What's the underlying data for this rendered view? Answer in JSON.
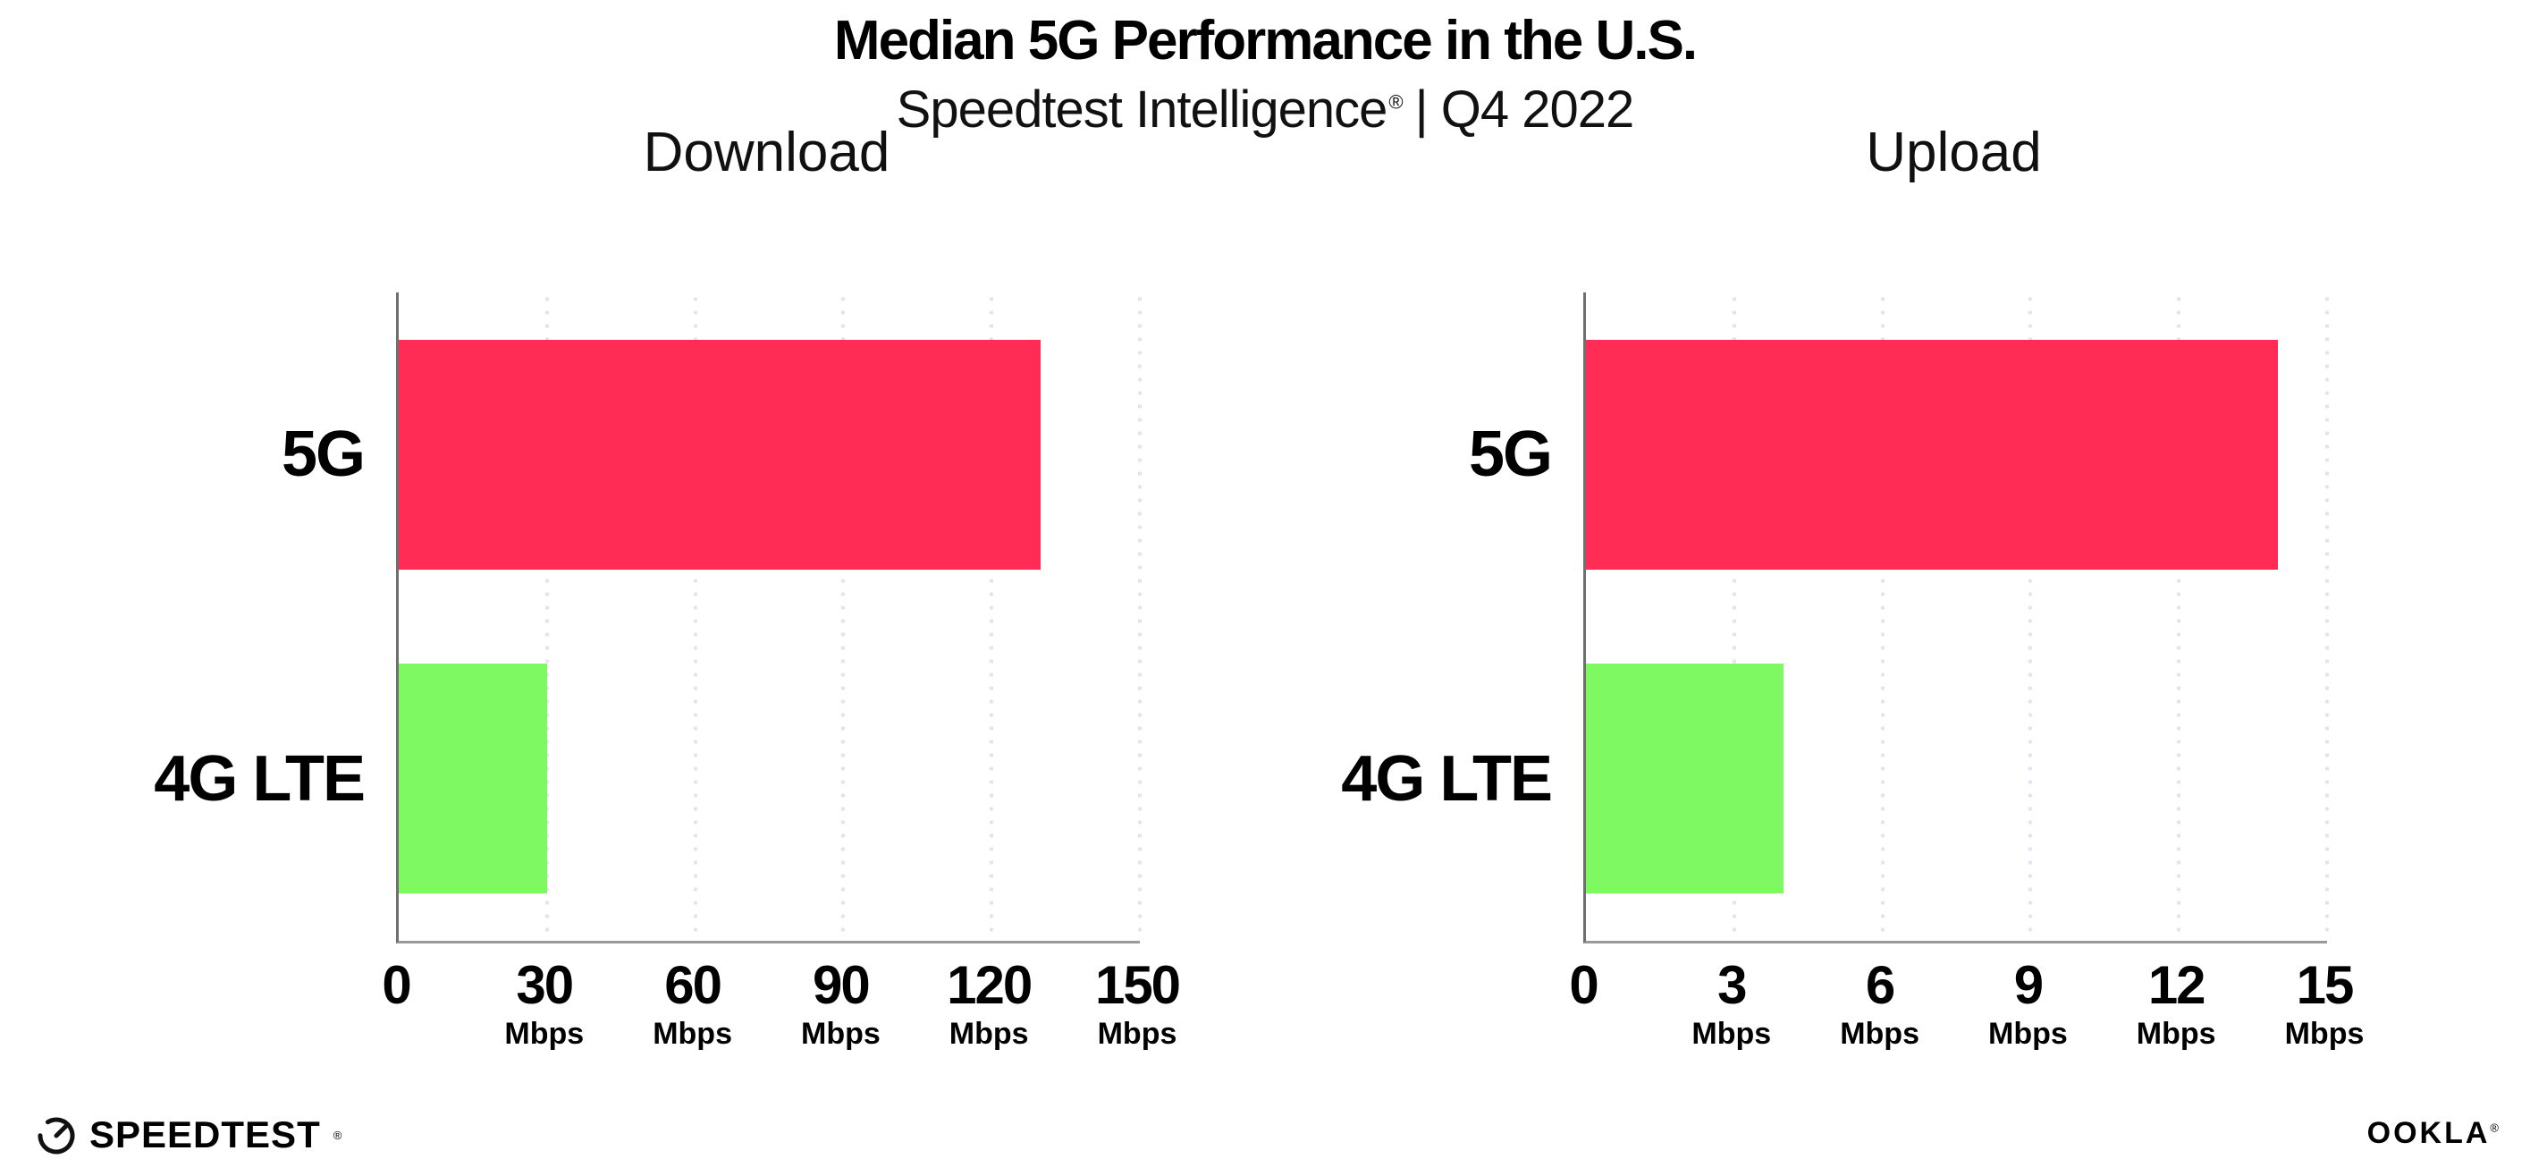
{
  "header": {
    "title": "Median 5G Performance in the U.S.",
    "subtitle_brand": "Speedtest Intelligence",
    "subtitle_reg": "®",
    "subtitle_rest": "| Q4 2022"
  },
  "colors": {
    "bar_5g": "#FF2D55",
    "bar_4g": "#7FF962",
    "grid": "#E4E4F0",
    "axis": "#999999",
    "spine": "#6F6F6F",
    "text": "#000000"
  },
  "chart_data": [
    {
      "type": "bar",
      "orientation": "horizontal",
      "title": "Download",
      "categories": [
        "5G",
        "4G LTE"
      ],
      "values": [
        130,
        30
      ],
      "unit": "Mbps",
      "xlim": [
        0,
        150
      ],
      "xticks": [
        0,
        30,
        60,
        90,
        120,
        150
      ],
      "bar_colors": [
        "#FF2D55",
        "#7FF962"
      ],
      "grid": "dotted-vertical",
      "legend": "none"
    },
    {
      "type": "bar",
      "orientation": "horizontal",
      "title": "Upload",
      "categories": [
        "5G",
        "4G LTE"
      ],
      "values": [
        14,
        4
      ],
      "unit": "Mbps",
      "xlim": [
        0,
        15
      ],
      "xticks": [
        0,
        3,
        6,
        9,
        12,
        15
      ],
      "bar_colors": [
        "#FF2D55",
        "#7FF962"
      ],
      "grid": "dotted-vertical",
      "legend": "none"
    }
  ],
  "footer": {
    "speedtest_wordmark": "SPEEDTEST",
    "speedtest_reg": "®",
    "ookla_wordmark": "OOKLA",
    "ookla_reg": "®"
  }
}
